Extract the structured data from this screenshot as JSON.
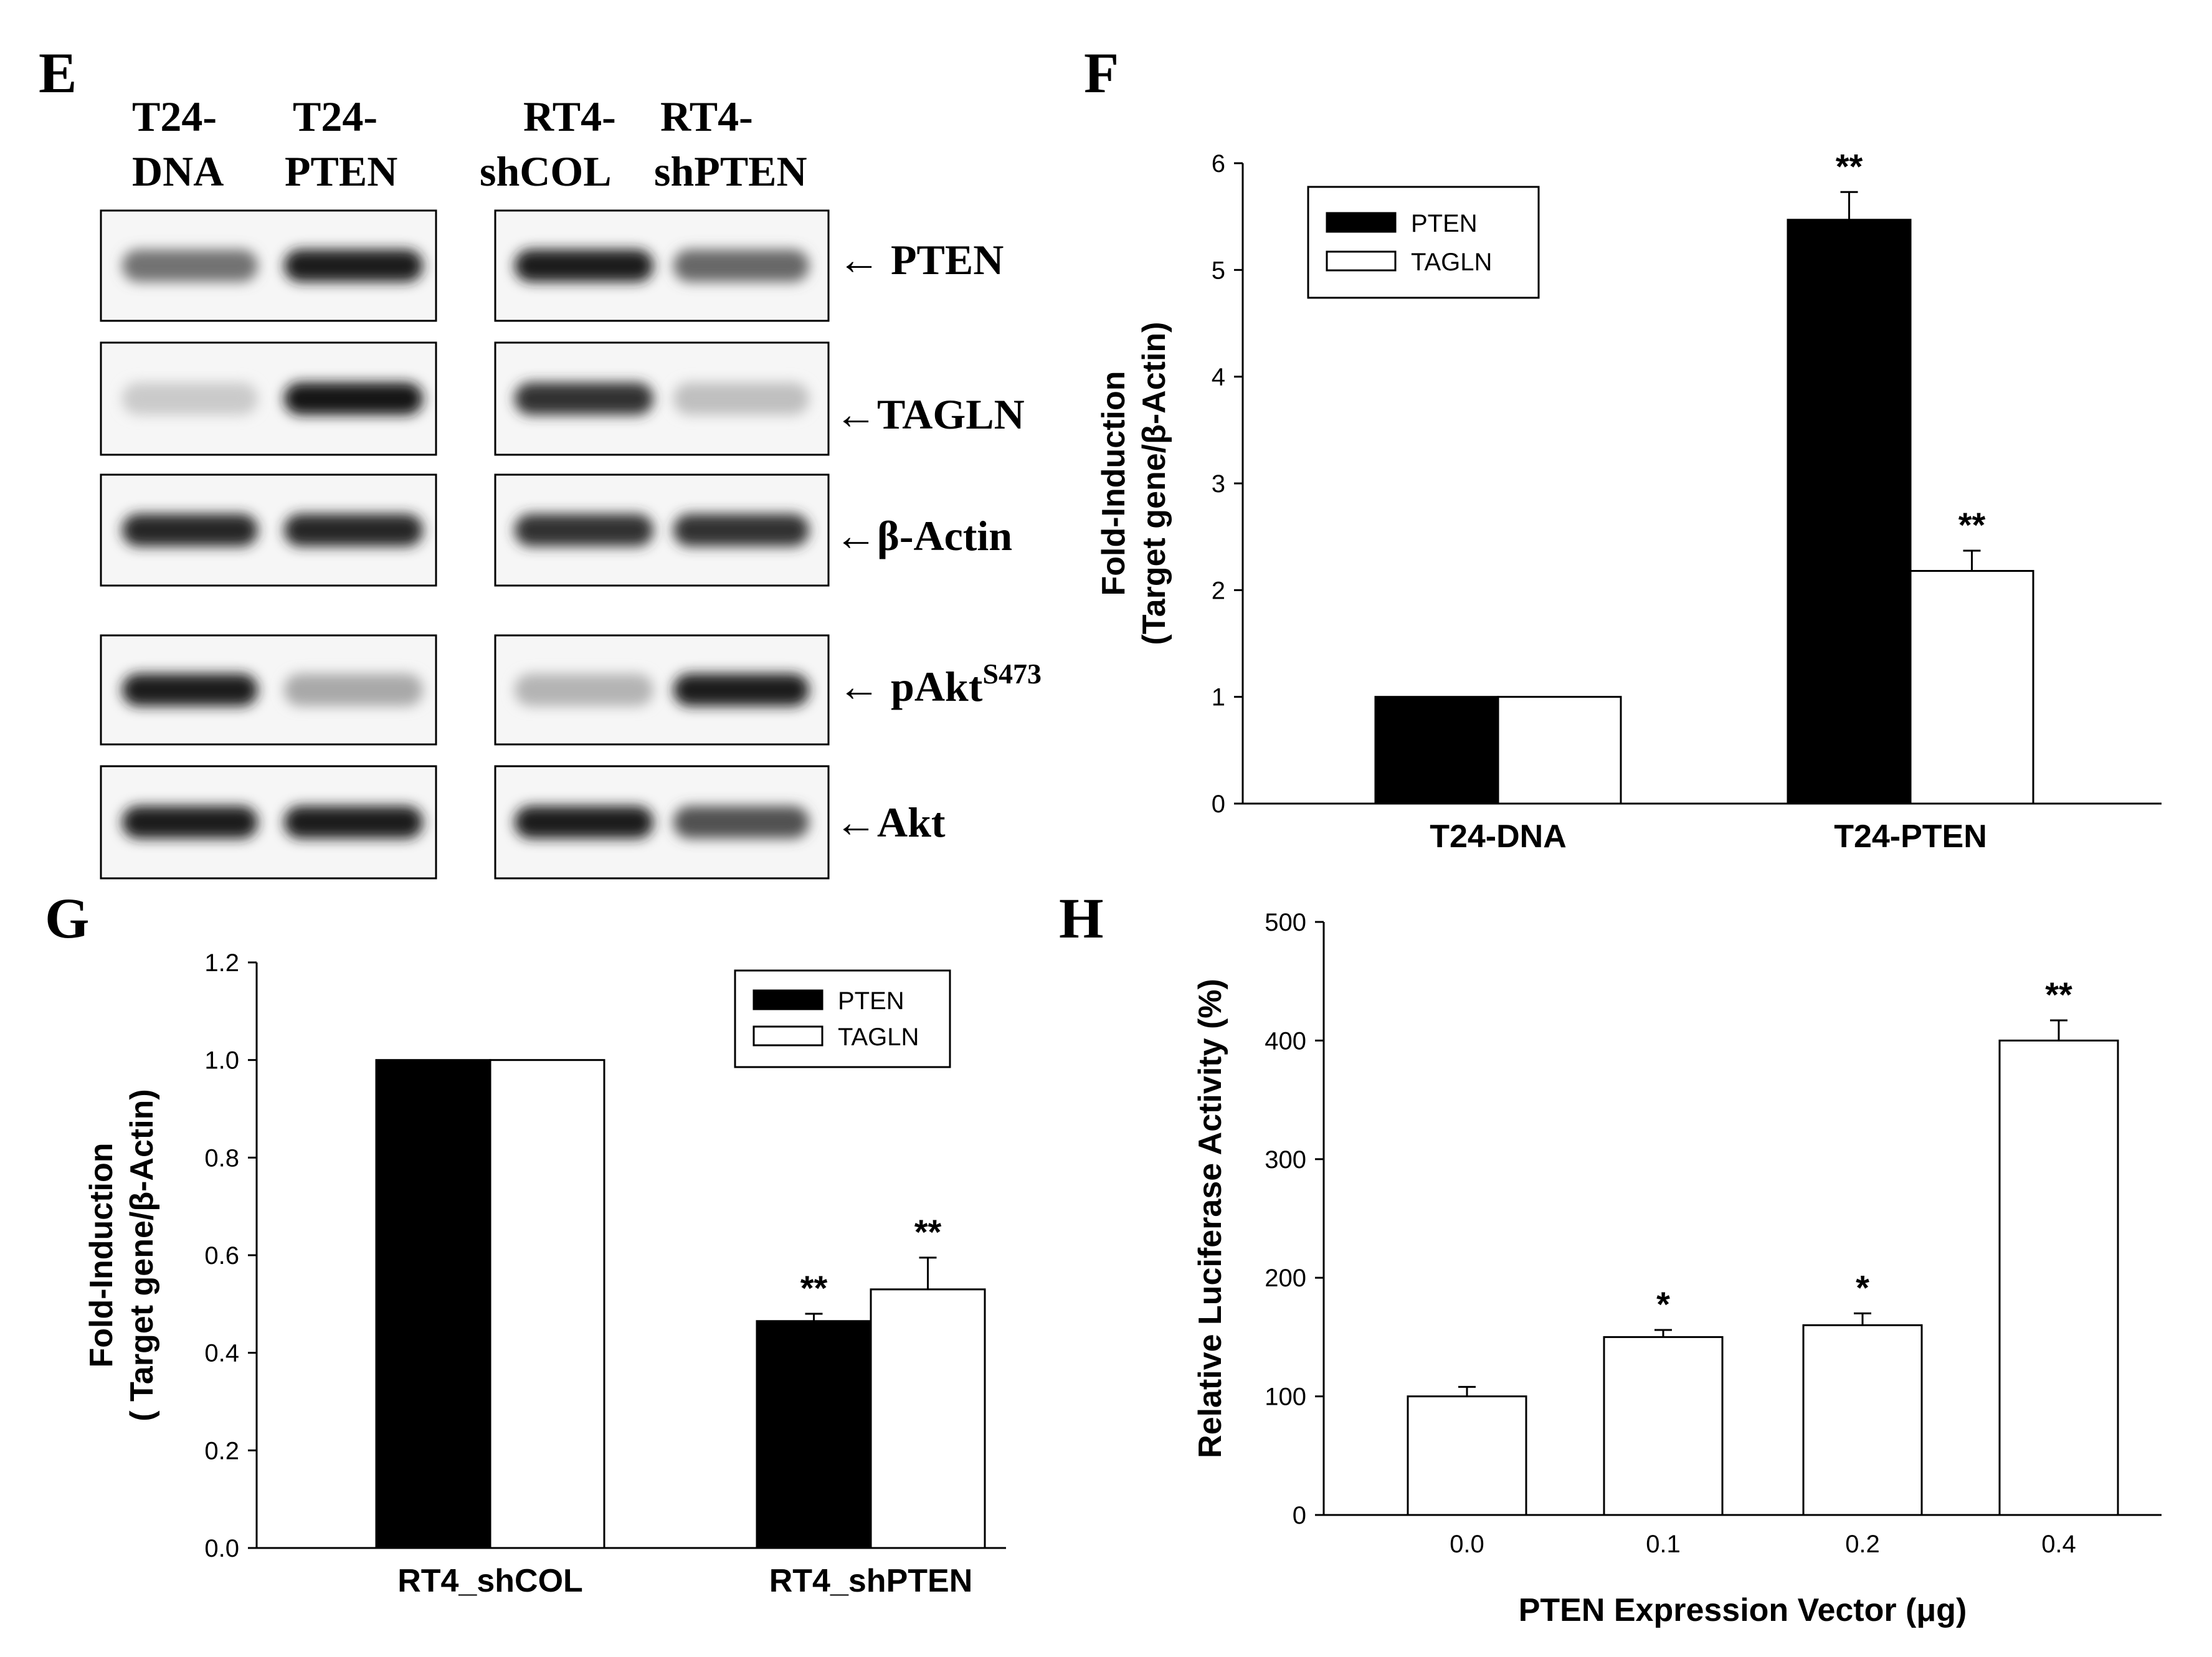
{
  "panel_labels": [
    "E",
    "F",
    "G",
    "H"
  ],
  "blot": {
    "lanes": [
      {
        "line1": "T24-",
        "line2": "DNA"
      },
      {
        "line1": "T24-",
        "line2": "PTEN"
      },
      {
        "line1": "RT4-",
        "line2": "shCOL"
      },
      {
        "line1": "RT4-",
        "line2": "shPTEN"
      }
    ],
    "rows": [
      {
        "label": "← PTEN",
        "intensity": [
          0.55,
          0.95,
          0.95,
          0.6
        ]
      },
      {
        "label": "←TAGLN",
        "intensity": [
          0.15,
          0.98,
          0.85,
          0.2
        ]
      },
      {
        "label": "←β-Actin",
        "intensity": [
          0.9,
          0.9,
          0.85,
          0.85
        ]
      },
      {
        "label": "← pAkt",
        "label_sup": "S473",
        "intensity": [
          0.95,
          0.3,
          0.25,
          0.95
        ]
      },
      {
        "label": "←Akt",
        "intensity": [
          0.95,
          0.95,
          0.95,
          0.7
        ]
      }
    ]
  },
  "colors": {
    "pten": "#000000",
    "tagln": "#ffffff",
    "axis": "#000000"
  },
  "chart_data": [
    {
      "panel": "F",
      "type": "bar",
      "categories": [
        "T24-DNA",
        "T24-PTEN"
      ],
      "series": [
        {
          "name": "PTEN",
          "values": [
            1.0,
            5.47
          ],
          "errors": [
            0,
            0.26
          ],
          "sig": [
            "",
            "**"
          ]
        },
        {
          "name": "TAGLN",
          "values": [
            1.0,
            2.18
          ],
          "errors": [
            0,
            0.19
          ],
          "sig": [
            "",
            "**"
          ]
        }
      ],
      "ylabel_line1": "Fold-Induction",
      "ylabel_line2": "(Target gene/β-Actin)",
      "ylim": [
        0,
        6
      ],
      "yticks": [
        "0",
        "1",
        "2",
        "3",
        "4",
        "5",
        "6"
      ],
      "legend": "top-left",
      "grid": false
    },
    {
      "panel": "G",
      "type": "bar",
      "categories": [
        "RT4_shCOL",
        "RT4_shPTEN"
      ],
      "series": [
        {
          "name": "PTEN",
          "values": [
            1.0,
            0.465
          ],
          "errors": [
            0,
            0.015
          ],
          "sig": [
            "",
            "**"
          ]
        },
        {
          "name": "TAGLN",
          "values": [
            1.0,
            0.53
          ],
          "errors": [
            0,
            0.065
          ],
          "sig": [
            "",
            "**"
          ]
        }
      ],
      "ylabel_line1": "Fold-Induction",
      "ylabel_line2": "( Target gene/β-Actin)",
      "ylim": [
        0,
        1.2
      ],
      "yticks": [
        "0.0",
        "0.2",
        "0.4",
        "0.6",
        "0.8",
        "1.0",
        "1.2"
      ],
      "legend": "top-right",
      "grid": false
    },
    {
      "panel": "H",
      "type": "bar",
      "categories": [
        "0.0",
        "0.1",
        "0.2",
        "0.4"
      ],
      "series": [
        {
          "name": "",
          "values": [
            100,
            150,
            160,
            400
          ],
          "errors": [
            8,
            6,
            10,
            17
          ],
          "sig": [
            "",
            "*",
            "*",
            "**"
          ]
        }
      ],
      "xlabel": "PTEN Expression Vector (μg)",
      "ylabel_line1": "Relative Luciferase Activity (%)",
      "ylim": [
        0,
        500
      ],
      "yticks": [
        "0",
        "100",
        "200",
        "300",
        "400",
        "500"
      ],
      "grid": false
    }
  ]
}
